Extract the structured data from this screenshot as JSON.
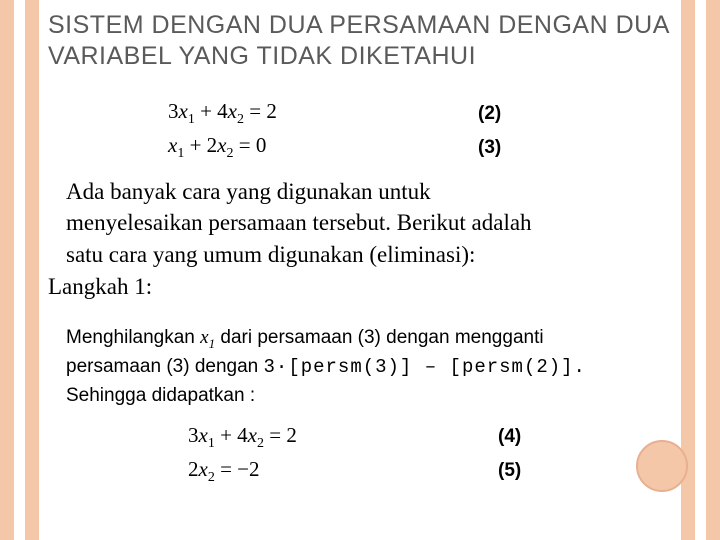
{
  "title": "SISTEM DENGAN DUA PERSAMAAN DENGAN DUA VARIABEL YANG TIDAK DIKETAHUI",
  "equations1": {
    "eq1_label": "(2)",
    "eq2_label": "(3)"
  },
  "paragraph": {
    "line1": "Ada banyak cara yang digunakan untuk",
    "line2": "menyelesaikan persamaan tersebut. Berikut adalah",
    "line3": "satu cara yang umum digunakan (eliminasi):",
    "langkah": "Langkah 1:"
  },
  "step": {
    "part1": "Menghilangkan ",
    "part2": " dari persamaan (3) dengan mengganti",
    "line2a": "persamaan (3) dengan ",
    "mono": "3·[persm(3)] – [persm(2)].",
    "line3": "Sehingga didapatkan :"
  },
  "equations2": {
    "eq1_label": "(4)",
    "eq2_label": "(5)"
  },
  "colors": {
    "stripe": "#f4c7a8",
    "circle_fill": "#f4c7a8",
    "circle_border": "#e8b090",
    "title_color": "#5a5a5a"
  }
}
